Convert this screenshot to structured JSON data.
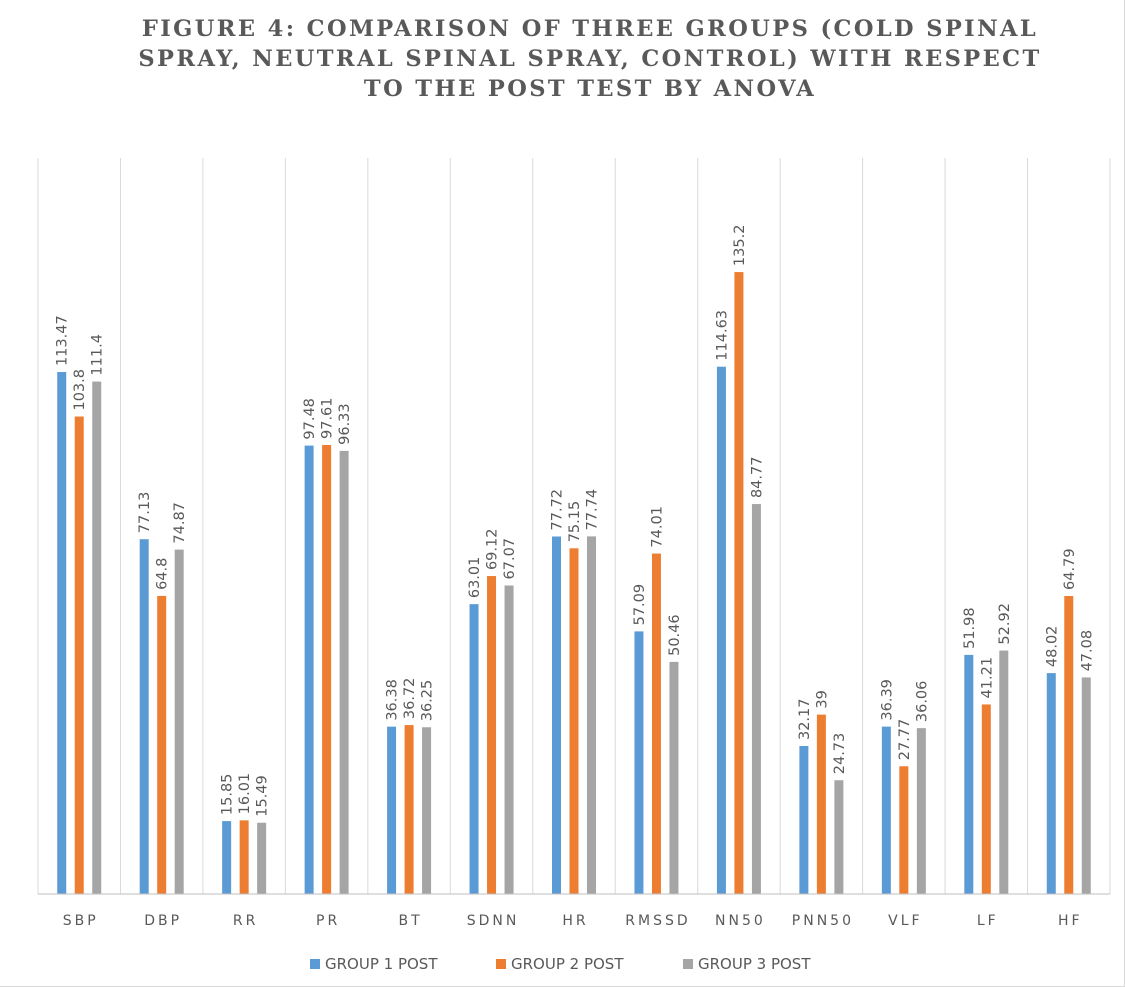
{
  "chart_data": {
    "type": "bar",
    "title_lines": [
      "FIGURE 4: COMPARISON OF THREE GROUPS (COLD SPINAL",
      "SPRAY, NEUTRAL SPINAL SPRAY, CONTROL) WITH RESPECT",
      "TO THE POST TEST BY ANOVA"
    ],
    "categories": [
      "SBP",
      "DBP",
      "RR",
      "PR",
      "BT",
      "SDNN",
      "HR",
      "RMSSD",
      "NN50",
      "PNN50",
      "VLF",
      "LF",
      "HF"
    ],
    "series": [
      {
        "name": "GROUP 1 POST",
        "color": "#5b9bd5",
        "values": [
          113.47,
          77.13,
          15.85,
          97.48,
          36.38,
          63.01,
          77.72,
          57.09,
          114.63,
          32.17,
          36.39,
          51.98,
          48.02
        ]
      },
      {
        "name": "GROUP 2 POST",
        "color": "#ed7d31",
        "values": [
          103.8,
          64.8,
          16.01,
          97.61,
          36.72,
          69.12,
          75.15,
          74.01,
          135.2,
          39,
          27.77,
          41.21,
          64.79
        ]
      },
      {
        "name": "GROUP 3 POST",
        "color": "#a5a5a5",
        "values": [
          111.4,
          74.87,
          15.49,
          96.33,
          36.25,
          67.07,
          77.74,
          50.46,
          84.77,
          24.73,
          36.06,
          52.92,
          47.08
        ]
      }
    ],
    "ylim": [
      0,
      160
    ],
    "grid": "vertical category separators",
    "legend_position": "bottom",
    "data_labels": "rotated above bars",
    "gridline_color": "#d9d9d9",
    "axis_color": "#bfbfbf",
    "text_color": "#595959"
  }
}
